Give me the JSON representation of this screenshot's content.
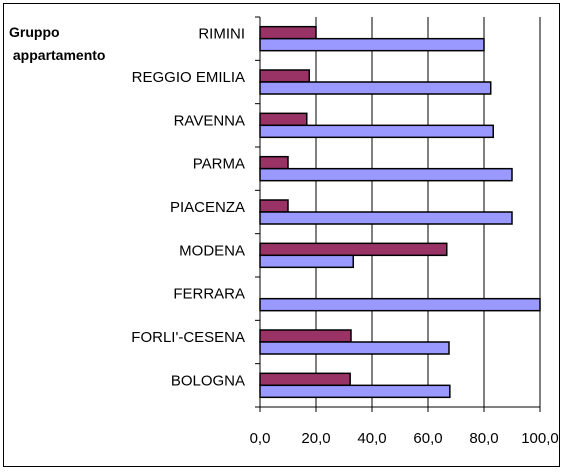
{
  "chart_data": {
    "type": "bar",
    "orientation": "horizontal",
    "title": "Gruppo\n appartamento",
    "categories": [
      "RIMINI",
      "REGGIO EMILIA",
      "RAVENNA",
      "PARMA",
      "PIACENZA",
      "MODENA",
      "FERRARA",
      "FORLI'-CESENA",
      "BOLOGNA"
    ],
    "series": [
      {
        "color": "#993366",
        "values": [
          20.0,
          17.6,
          16.7,
          10.0,
          10.0,
          66.7,
          0.0,
          32.5,
          32.2
        ]
      },
      {
        "color": "#9999ff",
        "values": [
          80.0,
          82.4,
          83.3,
          90.0,
          90.0,
          33.3,
          100.0,
          67.5,
          67.8
        ]
      }
    ],
    "xlim": [
      0,
      100
    ],
    "xticks": [
      "0,0",
      "20,0",
      "40,0",
      "60,0",
      "80,0",
      "100,0"
    ],
    "grid": true,
    "legend": "none"
  }
}
